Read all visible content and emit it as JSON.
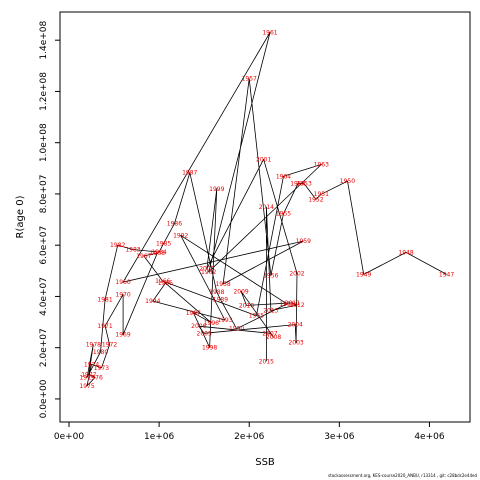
{
  "chart_data": {
    "type": "line",
    "xlabel": "SSB",
    "ylabel": "R(age 0)",
    "xlim": [
      -100000,
      4450000
    ],
    "ylim": [
      -9000000,
      151000000
    ],
    "x_ticks": [
      0,
      1000000,
      2000000,
      3000000,
      4000000
    ],
    "x_tick_labels": [
      "0e+00",
      "1e+06",
      "2e+06",
      "3e+06",
      "4e+06"
    ],
    "y_ticks": [
      0,
      20000000,
      40000000,
      60000000,
      80000000,
      100000000,
      120000000,
      140000000
    ],
    "y_tick_labels": [
      "0.0e+00",
      "2.0e+07",
      "4.0e+07",
      "6.0e+07",
      "8.0e+07",
      "1.0e+08",
      "1.2e+08",
      "1.4e+08"
    ],
    "grid": false,
    "series_color": "#000000",
    "label_color": "#ee0000",
    "points": [
      {
        "year": "1947",
        "x": 4190000,
        "y": 48600000
      },
      {
        "year": "1948",
        "x": 3740000,
        "y": 57200000
      },
      {
        "year": "1949",
        "x": 3270000,
        "y": 48600000
      },
      {
        "year": "1950",
        "x": 3090000,
        "y": 85000000
      },
      {
        "year": "1951",
        "x": 2800000,
        "y": 79900000
      },
      {
        "year": "1952",
        "x": 2740000,
        "y": 77900000
      },
      {
        "year": "1953",
        "x": 2610000,
        "y": 84000000
      },
      {
        "year": "1954",
        "x": 2540000,
        "y": 84000000
      },
      {
        "year": "1955",
        "x": 2380000,
        "y": 72300000
      },
      {
        "year": "1956",
        "x": 2240000,
        "y": 48200000
      },
      {
        "year": "1957",
        "x": 2000000,
        "y": 125000000
      },
      {
        "year": "1958",
        "x": 1710000,
        "y": 44800000
      },
      {
        "year": "1959",
        "x": 2600000,
        "y": 61600000
      },
      {
        "year": "1960",
        "x": 600000,
        "y": 45600000
      },
      {
        "year": "1961",
        "x": 2230000,
        "y": 143000000
      },
      {
        "year": "1962",
        "x": 1550000,
        "y": 49600000
      },
      {
        "year": "1963",
        "x": 2800000,
        "y": 91500000
      },
      {
        "year": "1964",
        "x": 2380000,
        "y": 86900000
      },
      {
        "year": "1965",
        "x": 2080000,
        "y": 32500000
      },
      {
        "year": "1966",
        "x": 1040000,
        "y": 46000000
      },
      {
        "year": "1967",
        "x": 830000,
        "y": 55800000
      },
      {
        "year": "1968",
        "x": 980000,
        "y": 56900000
      },
      {
        "year": "1969",
        "x": 600000,
        "y": 25100000
      },
      {
        "year": "1970",
        "x": 600000,
        "y": 40800000
      },
      {
        "year": "1971",
        "x": 400000,
        "y": 28500000
      },
      {
        "year": "1972",
        "x": 450000,
        "y": 21200000
      },
      {
        "year": "1973",
        "x": 360000,
        "y": 12100000
      },
      {
        "year": "1974",
        "x": 250000,
        "y": 13500000
      },
      {
        "year": "1975",
        "x": 200000,
        "y": 5100000
      },
      {
        "year": "1976",
        "x": 290000,
        "y": 8400000
      },
      {
        "year": "1977",
        "x": 220000,
        "y": 9600000
      },
      {
        "year": "1978",
        "x": 270000,
        "y": 21200000
      },
      {
        "year": "1979",
        "x": 200000,
        "y": 8400000
      },
      {
        "year": "1980",
        "x": 350000,
        "y": 18300000
      },
      {
        "year": "1981",
        "x": 400000,
        "y": 38900000
      },
      {
        "year": "1982",
        "x": 540000,
        "y": 60000000
      },
      {
        "year": "1983",
        "x": 710000,
        "y": 58300000
      },
      {
        "year": "1984",
        "x": 1000000,
        "y": 57300000
      },
      {
        "year": "1985",
        "x": 1050000,
        "y": 60700000
      },
      {
        "year": "1986",
        "x": 1170000,
        "y": 68400000
      },
      {
        "year": "1987",
        "x": 1340000,
        "y": 88300000
      },
      {
        "year": "1988",
        "x": 1640000,
        "y": 41700000
      },
      {
        "year": "1989",
        "x": 1680000,
        "y": 38900000
      },
      {
        "year": "1990",
        "x": 1860000,
        "y": 27400000
      },
      {
        "year": "1991",
        "x": 2420000,
        "y": 37100000
      },
      {
        "year": "1992",
        "x": 1240000,
        "y": 63800000
      },
      {
        "year": "1993",
        "x": 1730000,
        "y": 30800000
      },
      {
        "year": "1994",
        "x": 930000,
        "y": 38200000
      },
      {
        "year": "1995",
        "x": 1070000,
        "y": 45200000
      },
      {
        "year": "1996",
        "x": 1580000,
        "y": 29700000
      },
      {
        "year": "1997",
        "x": 1380000,
        "y": 33600000
      },
      {
        "year": "1998",
        "x": 1560000,
        "y": 20100000
      },
      {
        "year": "1999",
        "x": 1640000,
        "y": 82000000
      },
      {
        "year": "2000",
        "x": 1530000,
        "y": 50900000
      },
      {
        "year": "2001",
        "x": 2160000,
        "y": 93500000
      },
      {
        "year": "2002",
        "x": 2530000,
        "y": 49000000
      },
      {
        "year": "2003",
        "x": 2520000,
        "y": 22000000
      },
      {
        "year": "2004",
        "x": 2510000,
        "y": 29000000
      },
      {
        "year": "2005",
        "x": 1500000,
        "y": 25600000
      },
      {
        "year": "2006",
        "x": 1440000,
        "y": 28400000
      },
      {
        "year": "2007",
        "x": 2230000,
        "y": 25600000
      },
      {
        "year": "2008",
        "x": 2270000,
        "y": 24100000
      },
      {
        "year": "2009",
        "x": 1910000,
        "y": 42000000
      },
      {
        "year": "2010",
        "x": 1970000,
        "y": 36500000
      },
      {
        "year": "2011",
        "x": 2480000,
        "y": 37500000
      },
      {
        "year": "2012",
        "x": 2530000,
        "y": 36600000
      },
      {
        "year": "2013",
        "x": 2240000,
        "y": 34500000
      },
      {
        "year": "2014",
        "x": 2190000,
        "y": 74900000
      },
      {
        "year": "2015",
        "x": 2190000,
        "y": 14700000
      }
    ]
  },
  "footer_text": "stockassessment.org, KES-course2020_ANBU, r13314 , git: c28bdc2e44ed"
}
